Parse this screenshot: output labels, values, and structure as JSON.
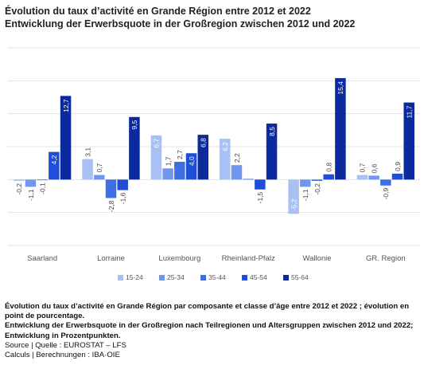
{
  "title": {
    "line1": "Évolution du taux d’activité en Grande Région entre 2012 et 2022",
    "line2": "Entwicklung der Erwerbsquote in der Großregion zwischen 2012 und 2022"
  },
  "footer": {
    "note_fr": "Évolution du taux d’activité en Grande Région par composante et classe d’âge entre 2012 et 2022 ; évolution en point de pourcentage.",
    "note_de": "Entwicklung der Erwerbsquote in der Großregion nach Teilregionen und Altersgruppen zwischen 2012 und 2022; Entwicklung in Prozentpunkten.",
    "source": "Source | Quelle : EUROSTAT – LFS",
    "calculs": "Calculs | Berechnungen : IBA·OIE"
  },
  "colors": {
    "15-24": "#a9c1f2",
    "25-34": "#6f97f0",
    "35-44": "#3d6ee6",
    "45-54": "#1f4fd6",
    "55-64": "#0a2a9e",
    "grid": "#e3e3e3",
    "axis_text": "#555555"
  },
  "chart_data": {
    "type": "bar",
    "categories": [
      "Saarland",
      "Lorraine",
      "Luxembourg",
      "Rheinland-Pfalz",
      "Wallonie",
      "GR. Region"
    ],
    "series": [
      {
        "name": "15-24",
        "values": [
          -0.2,
          3.1,
          6.7,
          6.2,
          -5.2,
          0.7
        ]
      },
      {
        "name": "25-34",
        "values": [
          -1.1,
          0.7,
          1.7,
          2.2,
          -1.1,
          0.6
        ]
      },
      {
        "name": "35-44",
        "values": [
          -0.1,
          -2.8,
          2.7,
          0.1,
          -0.2,
          -0.9
        ]
      },
      {
        "name": "45-54",
        "values": [
          4.2,
          -1.6,
          4.0,
          -1.5,
          0.8,
          0.9
        ]
      },
      {
        "name": "55-64",
        "values": [
          12.7,
          9.5,
          6.8,
          8.5,
          15.4,
          11.7
        ]
      }
    ],
    "data_labels": [
      [
        "-0,2",
        "-1,1",
        "-0,1",
        "4,2",
        "12,7"
      ],
      [
        "3,1",
        "0,7",
        "-2,8",
        "-1,6",
        "9,5"
      ],
      [
        "6,7",
        "1,7",
        "2,7",
        "4,0",
        "6,8"
      ],
      [
        "6,2",
        "2,2",
        "",
        "-1,5",
        "8,5"
      ],
      [
        "-5,2",
        "-1,1",
        "-0,2",
        "0,8",
        "15,4"
      ],
      [
        "0,7",
        "0,6",
        "-0,9",
        "0,9",
        "11,7"
      ]
    ],
    "ylim": [
      -10,
      20
    ],
    "grid": true,
    "y_axis_labels_visible": false,
    "legend_position": "bottom"
  }
}
